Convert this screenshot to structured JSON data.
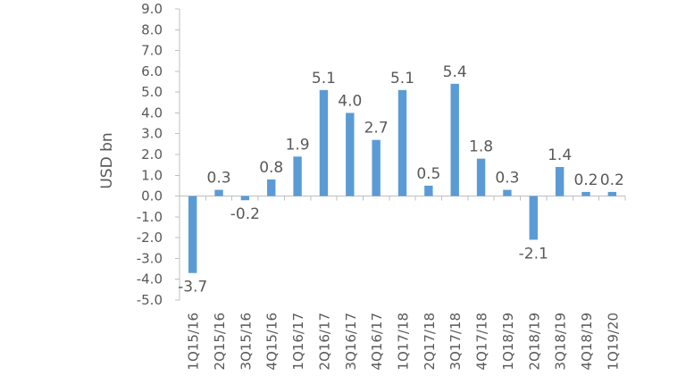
{
  "chart_data": {
    "type": "bar",
    "title": "",
    "xlabel": "",
    "ylabel": "USD bn",
    "ylim": [
      -5.0,
      9.0
    ],
    "ytick_step": 1.0,
    "ytick_decimals": 1,
    "grid": false,
    "legend": "none",
    "bar_color": "#5B9BD5",
    "categories": [
      "1Q15/16",
      "2Q15/16",
      "3Q15/16",
      "4Q15/16",
      "1Q16/17",
      "2Q16/17",
      "3Q16/17",
      "4Q16/17",
      "1Q17/18",
      "2Q17/18",
      "3Q17/18",
      "4Q17/18",
      "1Q18/19",
      "2Q18/19",
      "3Q18/19",
      "4Q18/19",
      "1Q19/20"
    ],
    "values": [
      -3.7,
      0.3,
      -0.2,
      0.8,
      1.9,
      5.1,
      4.0,
      2.7,
      5.1,
      0.5,
      5.4,
      1.8,
      0.3,
      -2.1,
      1.4,
      0.2,
      0.2
    ],
    "data_labels": [
      "-3.7",
      "0.3",
      "-0.2",
      "0.8",
      "1.9",
      "5.1",
      "4.0",
      "2.7",
      "5.1",
      "0.5",
      "5.4",
      "1.8",
      "0.3",
      "-2.1",
      "1.4",
      "0.2",
      "0.2"
    ]
  }
}
